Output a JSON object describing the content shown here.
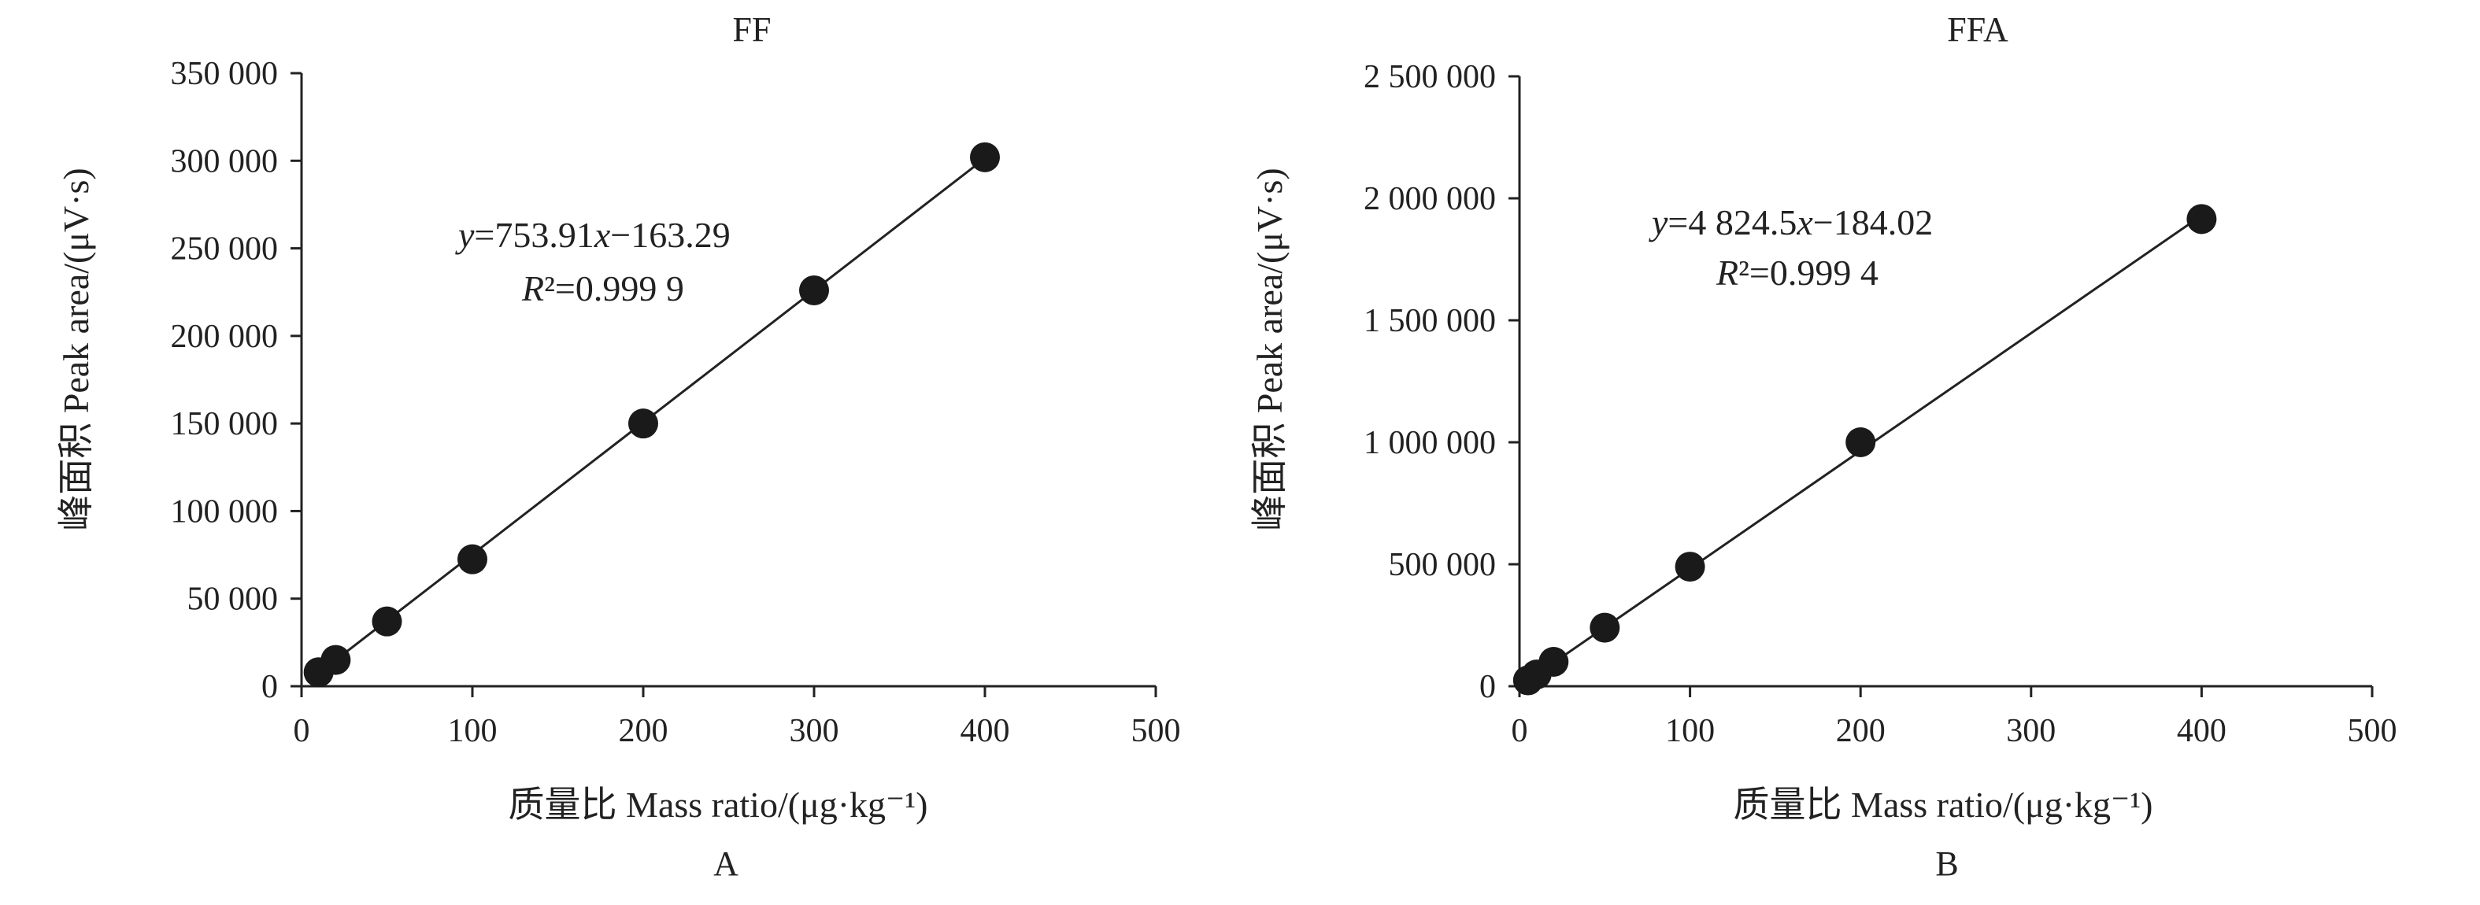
{
  "figure_title_left": "FF",
  "figure_title_right": "FFA",
  "chart_data": [
    {
      "type": "scatter",
      "title": "FF",
      "panel_label": "A",
      "xlabel": "质量比 Mass ratio/(μg·kg⁻¹)",
      "ylabel": "峰面积 Peak area/(μV·s)",
      "xlim": [
        0,
        500
      ],
      "ylim": [
        0,
        350000
      ],
      "x_ticks": [
        0,
        100,
        200,
        300,
        400,
        500
      ],
      "x_tick_labels": [
        "0",
        "100",
        "200",
        "300",
        "400",
        "500"
      ],
      "y_ticks": [
        0,
        50000,
        100000,
        150000,
        200000,
        250000,
        300000,
        350000
      ],
      "y_tick_labels": [
        "0",
        "50 000",
        "100 000",
        "150 000",
        "200 000",
        "250 000",
        "300 000",
        "350 000"
      ],
      "series": [
        {
          "x": [
            10,
            20,
            50,
            100,
            200,
            300,
            400
          ],
          "y": [
            8000,
            15000,
            37000,
            72500,
            150000,
            226000,
            302000
          ]
        }
      ],
      "fit": {
        "slope": 753.91,
        "intercept": -163.29
      },
      "equation_y_prefix": "y",
      "equation_body": "=753.91",
      "equation_x": "x",
      "equation_tail": "−163.29",
      "r2_symbol": "R",
      "r2_value": "²=0.999 9",
      "grid": false,
      "legend": "none"
    },
    {
      "type": "scatter",
      "title": "FFA",
      "panel_label": "B",
      "xlabel": "质量比 Mass ratio/(μg·kg⁻¹)",
      "ylabel": "峰面积 Peak area/(μV·s)",
      "xlim": [
        0,
        500
      ],
      "ylim": [
        0,
        2500000
      ],
      "x_ticks": [
        0,
        100,
        200,
        300,
        400,
        500
      ],
      "x_tick_labels": [
        "0",
        "100",
        "200",
        "300",
        "400",
        "500"
      ],
      "y_ticks": [
        0,
        500000,
        1000000,
        1500000,
        2000000,
        2500000
      ],
      "y_tick_labels": [
        "0",
        "500 000",
        "1 000 000",
        "1 500 000",
        "2 000 000",
        "2 500 000"
      ],
      "series": [
        {
          "x": [
            5,
            10,
            20,
            50,
            100,
            200,
            400
          ],
          "y": [
            24000,
            48000,
            100000,
            240000,
            490000,
            1000000,
            1915000
          ]
        }
      ],
      "fit": {
        "slope": 4824.5,
        "intercept": -184.02
      },
      "equation_y_prefix": "y",
      "equation_body": "=4 824.5",
      "equation_x": "x",
      "equation_tail": "−184.02",
      "r2_symbol": "R",
      "r2_value": "²=0.999 4",
      "grid": false,
      "legend": "none"
    }
  ]
}
